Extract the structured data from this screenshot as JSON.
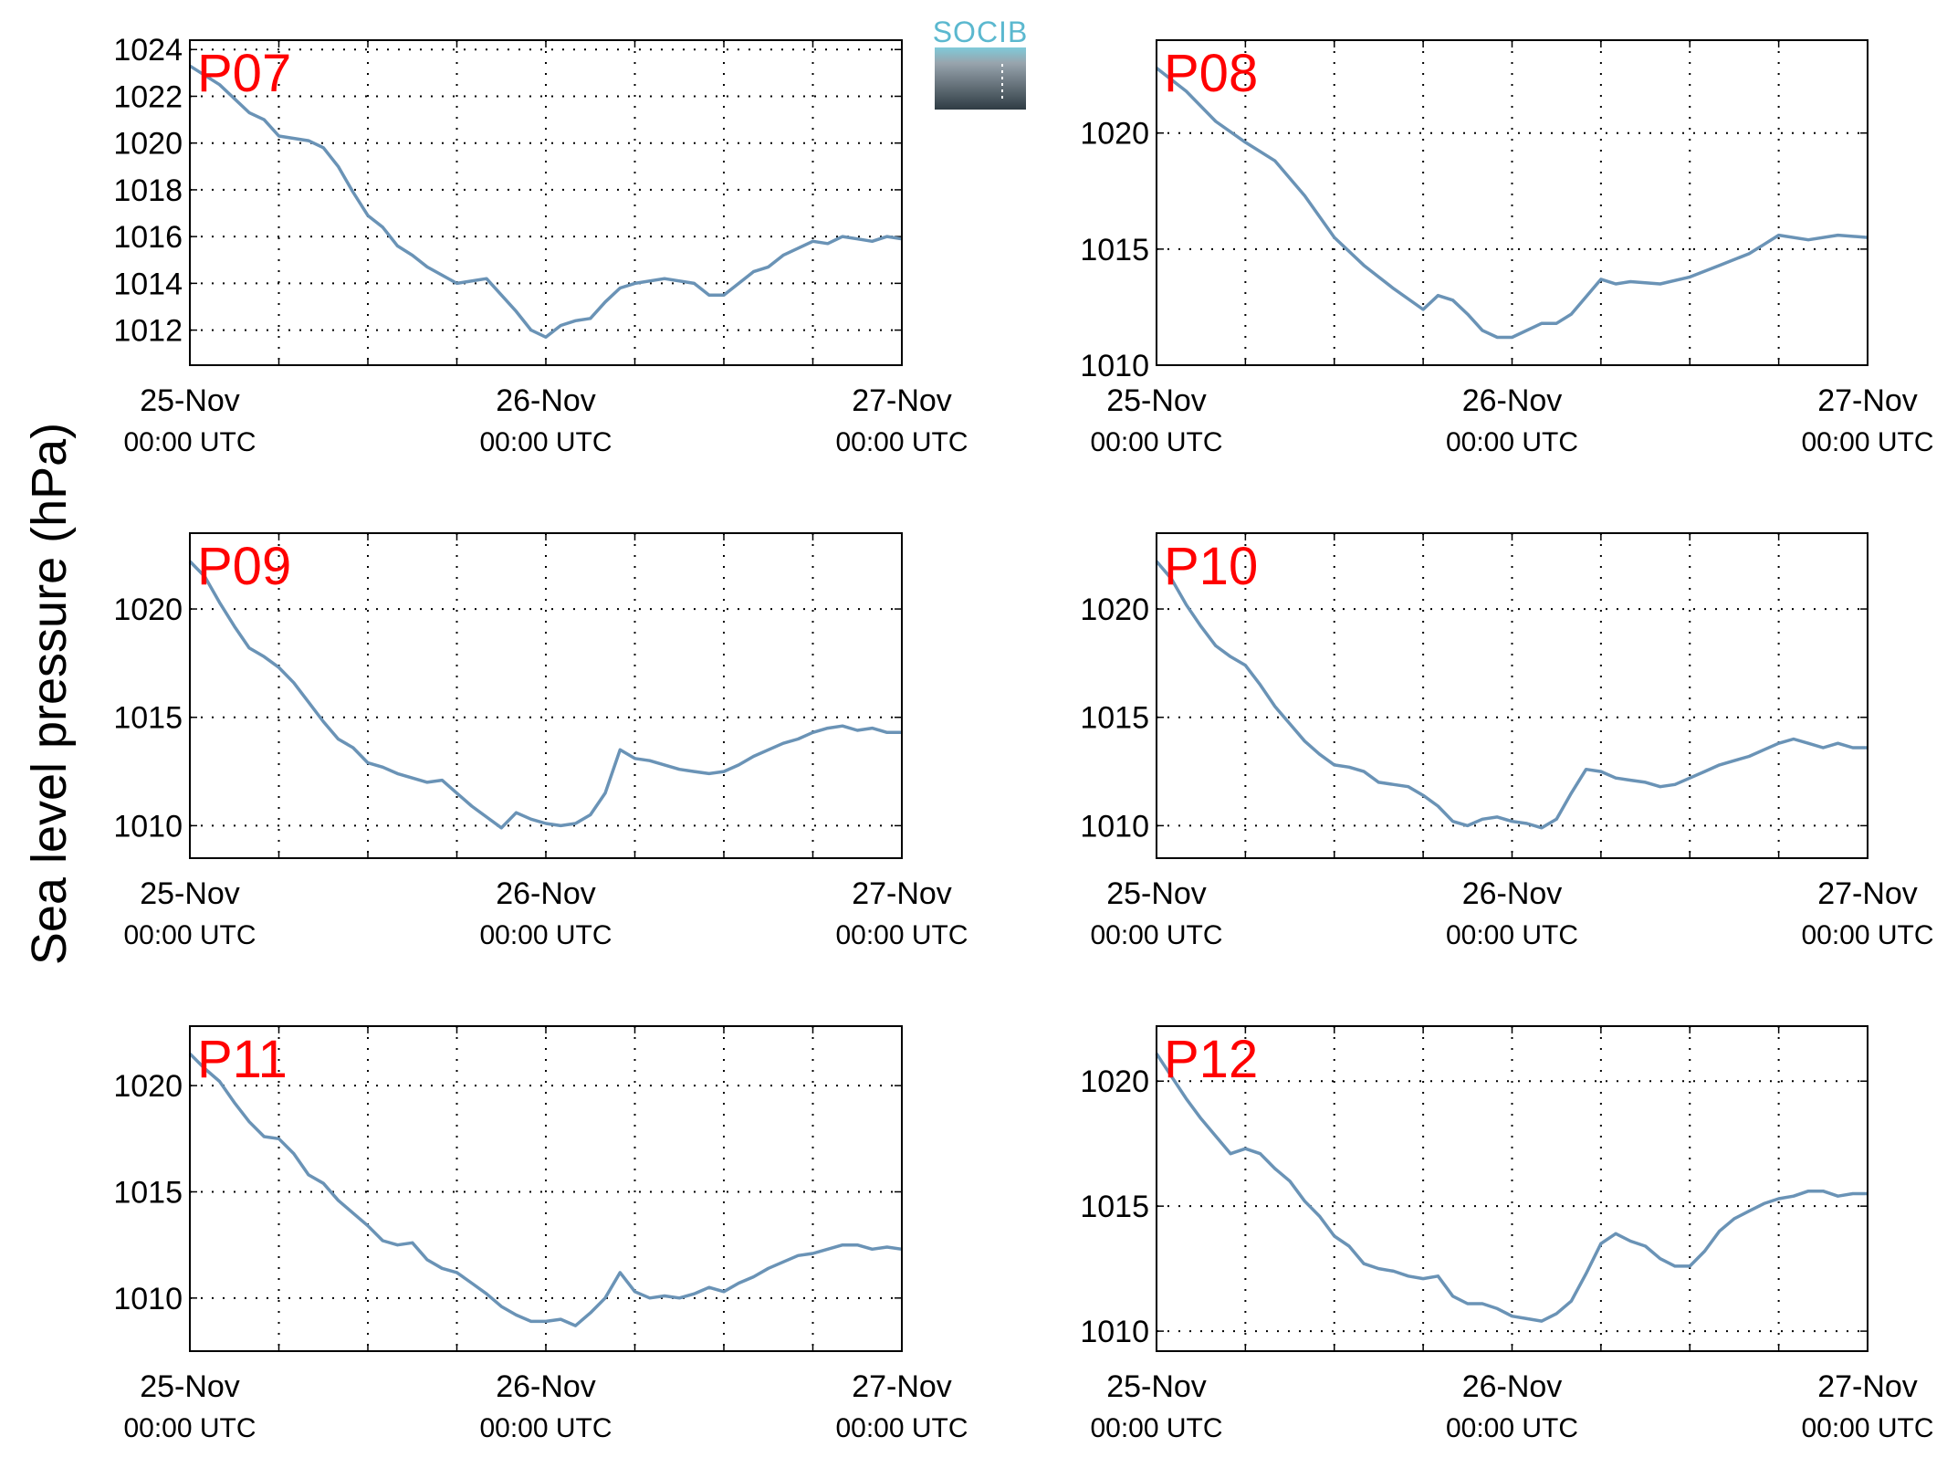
{
  "ylabel": "Sea level pressure (hPa)",
  "logo": {
    "text": "SOCIB",
    "color": "#5bb8cf"
  },
  "line_color": "#6a93b6",
  "label_color": "#ff0000",
  "chart_data": [
    {
      "type": "line",
      "panel": "P07",
      "xticks": [
        {
          "day": "25-Nov",
          "time": "00:00 UTC"
        },
        {
          "day": "26-Nov",
          "time": "00:00 UTC"
        },
        {
          "day": "27-Nov",
          "time": "00:00 UTC"
        }
      ],
      "xlim": [
        "2013-11-25 00:00",
        "2013-11-27 00:00"
      ],
      "ylim": [
        1010.5,
        1024.4
      ],
      "yticks": [
        1012,
        1014,
        1016,
        1018,
        1020,
        1022,
        1024
      ],
      "grid": true,
      "series": [
        {
          "x_hours": [
            0,
            2,
            4,
            5,
            6,
            8,
            9,
            10,
            11,
            12,
            13,
            14,
            15,
            16,
            18,
            20,
            21,
            22,
            23,
            24,
            25,
            26,
            27,
            28,
            29,
            30,
            32,
            34,
            35,
            36,
            38,
            39,
            40,
            41,
            42,
            43,
            44,
            45,
            46,
            47,
            48
          ],
          "values": [
            1023.3,
            1022.5,
            1021.3,
            1021.0,
            1020.3,
            1020.1,
            1019.8,
            1019.0,
            1017.9,
            1016.9,
            1016.4,
            1015.6,
            1015.2,
            1014.7,
            1014.0,
            1014.2,
            1013.5,
            1012.8,
            1012.0,
            1011.7,
            1012.2,
            1012.4,
            1012.5,
            1013.2,
            1013.8,
            1014.0,
            1014.2,
            1014.0,
            1013.5,
            1013.5,
            1014.5,
            1014.7,
            1015.2,
            1015.5,
            1015.8,
            1015.7,
            1016.0,
            1015.9,
            1015.8,
            1016.0,
            1015.9
          ]
        }
      ]
    },
    {
      "type": "line",
      "panel": "P08",
      "xticks": [
        {
          "day": "25-Nov",
          "time": "00:00 UTC"
        },
        {
          "day": "26-Nov",
          "time": "00:00 UTC"
        },
        {
          "day": "27-Nov",
          "time": "00:00 UTC"
        }
      ],
      "xlim": [
        "2013-11-25 00:00",
        "2013-11-27 00:00"
      ],
      "ylim": [
        1010,
        1024
      ],
      "yticks": [
        1010,
        1015,
        1020
      ],
      "grid": true,
      "series": [
        {
          "x_hours": [
            0,
            2,
            4,
            6,
            8,
            10,
            12,
            14,
            15,
            16,
            18,
            19,
            20,
            21,
            22,
            23,
            24,
            26,
            27,
            28,
            30,
            31,
            32,
            34,
            36,
            38,
            40,
            41,
            42,
            44,
            46,
            48
          ],
          "values": [
            1022.8,
            1021.8,
            1020.5,
            1019.6,
            1018.8,
            1017.3,
            1015.5,
            1014.3,
            1013.8,
            1013.3,
            1012.4,
            1013.0,
            1012.8,
            1012.2,
            1011.5,
            1011.2,
            1011.2,
            1011.8,
            1011.8,
            1012.2,
            1013.7,
            1013.5,
            1013.6,
            1013.5,
            1013.8,
            1014.3,
            1014.8,
            1015.2,
            1015.6,
            1015.4,
            1015.6,
            1015.5
          ]
        }
      ]
    },
    {
      "type": "line",
      "panel": "P09",
      "xticks": [
        {
          "day": "25-Nov",
          "time": "00:00 UTC"
        },
        {
          "day": "26-Nov",
          "time": "00:00 UTC"
        },
        {
          "day": "27-Nov",
          "time": "00:00 UTC"
        }
      ],
      "xlim": [
        "2013-11-25 00:00",
        "2013-11-27 00:00"
      ],
      "ylim": [
        1008.5,
        1023.5
      ],
      "yticks": [
        1010,
        1015,
        1020
      ],
      "grid": true,
      "series": [
        {
          "x_hours": [
            0,
            1,
            2,
            3,
            4,
            5,
            6,
            7,
            8,
            9,
            10,
            11,
            12,
            13,
            14,
            15,
            16,
            17,
            18,
            19,
            20,
            21,
            22,
            23,
            24,
            25,
            26,
            27,
            28,
            29,
            30,
            31,
            32,
            33,
            34,
            35,
            36,
            37,
            38,
            39,
            40,
            41,
            42,
            43,
            44,
            45,
            46,
            47,
            48
          ],
          "values": [
            1022.2,
            1021.5,
            1020.3,
            1019.2,
            1018.2,
            1017.8,
            1017.3,
            1016.6,
            1015.7,
            1014.8,
            1014.0,
            1013.6,
            1012.9,
            1012.7,
            1012.4,
            1012.2,
            1012.0,
            1012.1,
            1011.5,
            1010.9,
            1010.4,
            1009.9,
            1010.6,
            1010.3,
            1010.1,
            1010.0,
            1010.1,
            1010.5,
            1011.5,
            1013.5,
            1013.1,
            1013.0,
            1012.8,
            1012.6,
            1012.5,
            1012.4,
            1012.5,
            1012.8,
            1013.2,
            1013.5,
            1013.8,
            1014.0,
            1014.3,
            1014.5,
            1014.6,
            1014.4,
            1014.5,
            1014.3,
            1014.3
          ]
        }
      ]
    },
    {
      "type": "line",
      "panel": "P10",
      "xticks": [
        {
          "day": "25-Nov",
          "time": "00:00 UTC"
        },
        {
          "day": "26-Nov",
          "time": "00:00 UTC"
        },
        {
          "day": "27-Nov",
          "time": "00:00 UTC"
        }
      ],
      "xlim": [
        "2013-11-25 00:00",
        "2013-11-27 00:00"
      ],
      "ylim": [
        1008.5,
        1023.5
      ],
      "yticks": [
        1010,
        1015,
        1020
      ],
      "grid": true,
      "series": [
        {
          "x_hours": [
            0,
            1,
            2,
            3,
            4,
            5,
            6,
            7,
            8,
            9,
            10,
            11,
            12,
            13,
            14,
            15,
            16,
            17,
            18,
            19,
            20,
            21,
            22,
            23,
            24,
            25,
            26,
            27,
            28,
            29,
            30,
            31,
            32,
            33,
            34,
            35,
            36,
            37,
            38,
            39,
            40,
            41,
            42,
            43,
            44,
            45,
            46,
            47,
            48
          ],
          "values": [
            1022.2,
            1021.4,
            1020.2,
            1019.2,
            1018.3,
            1017.8,
            1017.4,
            1016.5,
            1015.5,
            1014.7,
            1013.9,
            1013.3,
            1012.8,
            1012.7,
            1012.5,
            1012.0,
            1011.9,
            1011.8,
            1011.4,
            1010.9,
            1010.2,
            1010.0,
            1010.3,
            1010.4,
            1010.2,
            1010.1,
            1009.9,
            1010.3,
            1011.5,
            1012.6,
            1012.5,
            1012.2,
            1012.1,
            1012.0,
            1011.8,
            1011.9,
            1012.2,
            1012.5,
            1012.8,
            1013.0,
            1013.2,
            1013.5,
            1013.8,
            1014.0,
            1013.8,
            1013.6,
            1013.8,
            1013.6,
            1013.6
          ]
        }
      ]
    },
    {
      "type": "line",
      "panel": "P11",
      "xticks": [
        {
          "day": "25-Nov",
          "time": "00:00 UTC"
        },
        {
          "day": "26-Nov",
          "time": "00:00 UTC"
        },
        {
          "day": "27-Nov",
          "time": "00:00 UTC"
        }
      ],
      "xlim": [
        "2013-11-25 00:00",
        "2013-11-27 00:00"
      ],
      "ylim": [
        1007.5,
        1022.8
      ],
      "yticks": [
        1010,
        1015,
        1020
      ],
      "grid": true,
      "series": [
        {
          "x_hours": [
            0,
            1,
            2,
            3,
            4,
            5,
            6,
            7,
            8,
            9,
            10,
            11,
            12,
            13,
            14,
            15,
            16,
            17,
            18,
            19,
            20,
            21,
            22,
            23,
            24,
            25,
            26,
            27,
            28,
            29,
            30,
            31,
            32,
            33,
            34,
            35,
            36,
            37,
            38,
            39,
            40,
            41,
            42,
            43,
            44,
            45,
            46,
            47,
            48
          ],
          "values": [
            1021.5,
            1020.8,
            1020.2,
            1019.2,
            1018.3,
            1017.6,
            1017.5,
            1016.8,
            1015.8,
            1015.4,
            1014.6,
            1014.0,
            1013.4,
            1012.7,
            1012.5,
            1012.6,
            1011.8,
            1011.4,
            1011.2,
            1010.7,
            1010.2,
            1009.6,
            1009.2,
            1008.9,
            1008.9,
            1009.0,
            1008.7,
            1009.3,
            1010.0,
            1011.2,
            1010.3,
            1010.0,
            1010.1,
            1010.0,
            1010.2,
            1010.5,
            1010.3,
            1010.7,
            1011.0,
            1011.4,
            1011.7,
            1012.0,
            1012.1,
            1012.3,
            1012.5,
            1012.5,
            1012.3,
            1012.4,
            1012.3
          ]
        }
      ]
    },
    {
      "type": "line",
      "panel": "P12",
      "xticks": [
        {
          "day": "25-Nov",
          "time": "00:00 UTC"
        },
        {
          "day": "26-Nov",
          "time": "00:00 UTC"
        },
        {
          "day": "27-Nov",
          "time": "00:00 UTC"
        }
      ],
      "xlim": [
        "2013-11-25 00:00",
        "2013-11-27 00:00"
      ],
      "ylim": [
        1009.2,
        1022.2
      ],
      "yticks": [
        1010,
        1015,
        1020
      ],
      "grid": true,
      "series": [
        {
          "x_hours": [
            0,
            1,
            2,
            3,
            4,
            5,
            6,
            7,
            8,
            9,
            10,
            11,
            12,
            13,
            14,
            15,
            16,
            17,
            18,
            19,
            20,
            21,
            22,
            23,
            24,
            25,
            26,
            27,
            28,
            29,
            30,
            31,
            32,
            33,
            34,
            35,
            36,
            37,
            38,
            39,
            40,
            41,
            42,
            43,
            44,
            45,
            46,
            47,
            48
          ],
          "values": [
            1021.1,
            1020.2,
            1019.3,
            1018.5,
            1017.8,
            1017.1,
            1017.3,
            1017.1,
            1016.5,
            1016.0,
            1015.2,
            1014.6,
            1013.8,
            1013.4,
            1012.7,
            1012.5,
            1012.4,
            1012.2,
            1012.1,
            1012.2,
            1011.4,
            1011.1,
            1011.1,
            1010.9,
            1010.6,
            1010.5,
            1010.4,
            1010.7,
            1011.2,
            1012.3,
            1013.5,
            1013.9,
            1013.6,
            1013.4,
            1012.9,
            1012.6,
            1012.6,
            1013.2,
            1014.0,
            1014.5,
            1014.8,
            1015.1,
            1015.3,
            1015.4,
            1015.6,
            1015.6,
            1015.4,
            1015.5,
            1015.5
          ]
        }
      ]
    }
  ]
}
